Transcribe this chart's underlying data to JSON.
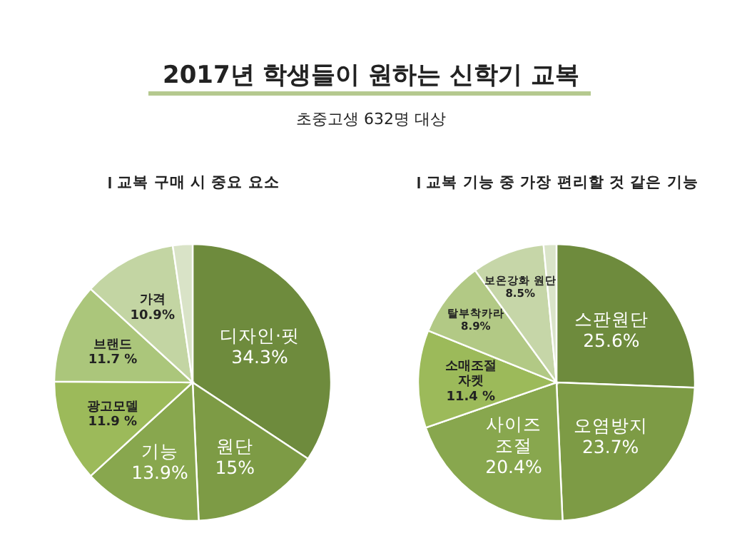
{
  "chart_data": [
    {
      "type": "other",
      "title": "2017년 학생들이 원하는 신학기 교복",
      "subtitle": "초중고생 632명 대상"
    },
    {
      "type": "pie",
      "title": "교복 구매 시 중요 요소",
      "categories": [
        "디자인·핏",
        "원단",
        "기능",
        "광고모델",
        "브랜드",
        "가격",
        null
      ],
      "values": [
        34.3,
        15,
        13.9,
        11.9,
        11.7,
        10.9,
        2.3
      ],
      "value_labels": [
        "34.3%",
        "15%",
        "13.9%",
        "11.9 %",
        "11.7 %",
        "10.9%",
        null
      ],
      "colors": [
        "#6e8b3d",
        "#7d9b45",
        "#88a74e",
        "#9cba5a",
        "#abc67b",
        "#c3d5a3",
        "#d9e3c7"
      ]
    },
    {
      "type": "pie",
      "title": "교복 기능 중 가장 편리할 것 같은 기능",
      "categories": [
        "스판원단",
        "오염방지",
        "사이즈\n조절",
        "소매조절\n자켓",
        "탈부착카라",
        "보온강화 원단",
        null
      ],
      "values": [
        25.6,
        23.7,
        20.4,
        11.4,
        8.9,
        8.5,
        1.5
      ],
      "value_labels": [
        "25.6%",
        "23.7%",
        "20.4%",
        "11.4 %",
        "8.9%",
        "8.5%",
        null
      ],
      "colors": [
        "#6e8b3d",
        "#7d9b45",
        "#88a74e",
        "#9cba5a",
        "#b2c985",
        "#c6d6a8",
        "#dae4c9"
      ]
    }
  ]
}
